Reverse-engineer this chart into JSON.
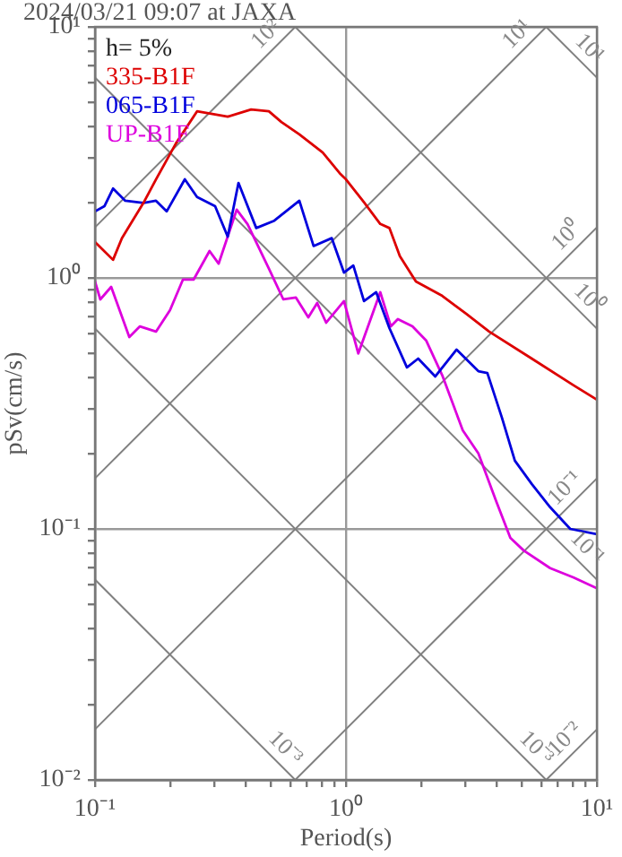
{
  "chart_data": {
    "type": "line",
    "title": "2024/03/21 09:07 at JAXA",
    "xlabel": "Period(s)",
    "ylabel": "pSv(cm/s)",
    "log": "xy",
    "grid": true,
    "legend": "top left",
    "marker": "none",
    "line_style": "solid",
    "xlim": [
      0.1,
      10
    ],
    "ylim": [
      0.01,
      10
    ],
    "xticks": [
      {
        "value": 0.1,
        "label": "10⁻¹"
      },
      {
        "value": 0.2,
        "label": null
      },
      {
        "value": 0.3,
        "label": null
      },
      {
        "value": 0.4,
        "label": null
      },
      {
        "value": 0.5,
        "label": null
      },
      {
        "value": 0.6,
        "label": null
      },
      {
        "value": 0.7,
        "label": null
      },
      {
        "value": 0.8,
        "label": null
      },
      {
        "value": 0.9,
        "label": null
      },
      {
        "value": 1,
        "label": "10⁰"
      },
      {
        "value": 2,
        "label": null
      },
      {
        "value": 3,
        "label": null
      },
      {
        "value": 4,
        "label": null
      },
      {
        "value": 5,
        "label": null
      },
      {
        "value": 6,
        "label": null
      },
      {
        "value": 7,
        "label": null
      },
      {
        "value": 8,
        "label": null
      },
      {
        "value": 9,
        "label": null
      },
      {
        "value": 10,
        "label": "10¹"
      }
    ],
    "yticks": [
      {
        "value": 0.01,
        "label": "10⁻²"
      },
      {
        "value": 0.02,
        "label": null
      },
      {
        "value": 0.03,
        "label": null
      },
      {
        "value": 0.04,
        "label": null
      },
      {
        "value": 0.05,
        "label": null
      },
      {
        "value": 0.06,
        "label": null
      },
      {
        "value": 0.07,
        "label": null
      },
      {
        "value": 0.08,
        "label": null
      },
      {
        "value": 0.09,
        "label": null
      },
      {
        "value": 0.1,
        "label": "10⁻¹"
      },
      {
        "value": 0.2,
        "label": null
      },
      {
        "value": 0.3,
        "label": null
      },
      {
        "value": 0.4,
        "label": null
      },
      {
        "value": 0.5,
        "label": null
      },
      {
        "value": 0.6,
        "label": null
      },
      {
        "value": 0.7,
        "label": null
      },
      {
        "value": 0.8,
        "label": null
      },
      {
        "value": 0.9,
        "label": null
      },
      {
        "value": 1,
        "label": "10⁰"
      },
      {
        "value": 2,
        "label": null
      },
      {
        "value": 3,
        "label": null
      },
      {
        "value": 4,
        "label": null
      },
      {
        "value": 5,
        "label": null
      },
      {
        "value": 6,
        "label": null
      },
      {
        "value": 7,
        "label": null
      },
      {
        "value": 8,
        "label": null
      },
      {
        "value": 9,
        "label": null
      },
      {
        "value": 10,
        "label": "10¹"
      }
    ],
    "annotations": [
      "h= 5%"
    ],
    "series": [
      {
        "name": "335-B1F",
        "color": "#dd0000",
        "x": [
          0.1,
          0.118,
          0.128,
          0.156,
          0.175,
          0.21,
          0.255,
          0.338,
          0.419,
          0.493,
          0.553,
          0.652,
          0.808,
          0.952,
          1.0,
          1.18,
          1.37,
          1.49,
          1.64,
          1.9,
          2.42,
          3.01,
          3.72,
          5.5,
          8.08,
          10
        ],
        "values": [
          1.39,
          1.18,
          1.44,
          1.99,
          2.47,
          3.43,
          4.61,
          4.39,
          4.69,
          4.61,
          4.18,
          3.73,
          3.16,
          2.59,
          2.47,
          2.0,
          1.64,
          1.58,
          1.22,
          0.967,
          0.848,
          0.72,
          0.611,
          0.477,
          0.373,
          0.327
        ]
      },
      {
        "name": "065-B1F",
        "color": "#0000dd",
        "x": [
          0.1,
          0.109,
          0.118,
          0.132,
          0.156,
          0.175,
          0.193,
          0.228,
          0.255,
          0.301,
          0.338,
          0.373,
          0.439,
          0.518,
          0.652,
          0.743,
          0.878,
          0.982,
          1.07,
          1.18,
          1.32,
          1.49,
          1.75,
          1.94,
          2.27,
          2.76,
          3.37,
          3.66,
          4.18,
          4.71,
          5.5,
          6.51,
          7.83,
          10
        ],
        "values": [
          1.84,
          1.93,
          2.27,
          2.03,
          1.99,
          2.03,
          1.84,
          2.47,
          2.1,
          1.93,
          1.46,
          2.39,
          1.58,
          1.69,
          2.03,
          1.34,
          1.44,
          1.05,
          1.12,
          0.808,
          0.877,
          0.631,
          0.44,
          0.477,
          0.405,
          0.518,
          0.425,
          0.418,
          0.278,
          0.187,
          0.151,
          0.122,
          0.1,
          0.0953
        ]
      },
      {
        "name": "UP-B1F",
        "color": "#dd00dd",
        "x": [
          0.1,
          0.105,
          0.116,
          0.137,
          0.151,
          0.175,
          0.199,
          0.224,
          0.247,
          0.286,
          0.311,
          0.367,
          0.405,
          0.493,
          0.563,
          0.632,
          0.708,
          0.768,
          0.834,
          0.982,
          1.12,
          1.37,
          1.51,
          1.61,
          1.84,
          2.09,
          2.43,
          2.92,
          3.37,
          3.98,
          4.52,
          5.11,
          6.51,
          8.08,
          10
        ],
        "values": [
          0.968,
          0.821,
          0.921,
          0.581,
          0.641,
          0.611,
          0.744,
          0.984,
          0.984,
          1.28,
          1.14,
          1.87,
          1.64,
          1.09,
          0.821,
          0.835,
          0.696,
          0.794,
          0.663,
          0.808,
          0.5,
          0.877,
          0.641,
          0.685,
          0.641,
          0.562,
          0.405,
          0.247,
          0.2,
          0.128,
          0.0921,
          0.082,
          0.0698,
          0.064,
          0.058
        ]
      },
      {
        "name": "10²",
        "type": "line",
        "color": "#808080",
        "x": [
          0.1,
          0.628
        ],
        "values": [
          1.59,
          10
        ]
      },
      {
        "name": "10¹",
        "type": "line",
        "color": "#808080",
        "x": [
          0.1,
          6.28
        ],
        "values": [
          0.159,
          10
        ]
      },
      {
        "name": "10⁰",
        "type": "line",
        "color": "#808080",
        "x": [
          0.1,
          10
        ],
        "values": [
          0.0159,
          1.59
        ]
      },
      {
        "name": "10⁻¹",
        "type": "line",
        "color": "#808080",
        "x": [
          0.628,
          10
        ],
        "values": [
          0.01,
          0.159
        ]
      },
      {
        "name": "10⁻²",
        "type": "line",
        "color": "#808080",
        "x": [
          6.28,
          10
        ],
        "values": [
          0.01,
          0.0159
        ]
      },
      {
        "name": "10¹",
        "type": "line",
        "color": "#808080",
        "x": [
          6.28,
          10
        ],
        "values": [
          10,
          6.28
        ]
      },
      {
        "name": "10⁰",
        "type": "line",
        "color": "#808080",
        "x": [
          0.628,
          10
        ],
        "values": [
          10,
          0.628
        ]
      },
      {
        "name": "10⁻¹",
        "type": "line",
        "color": "#808080",
        "x": [
          0.1,
          10
        ],
        "values": [
          6.28,
          0.0628
        ]
      },
      {
        "name": "10⁻³",
        "type": "line",
        "color": "#808080",
        "x": [
          0.1,
          6.28
        ],
        "values": [
          0.628,
          0.01
        ]
      },
      {
        "name": "10⁻³",
        "type": "line",
        "color": "#808080",
        "x": [
          0.1,
          0.628
        ],
        "values": [
          0.0628,
          0.01
        ]
      }
    ]
  }
}
